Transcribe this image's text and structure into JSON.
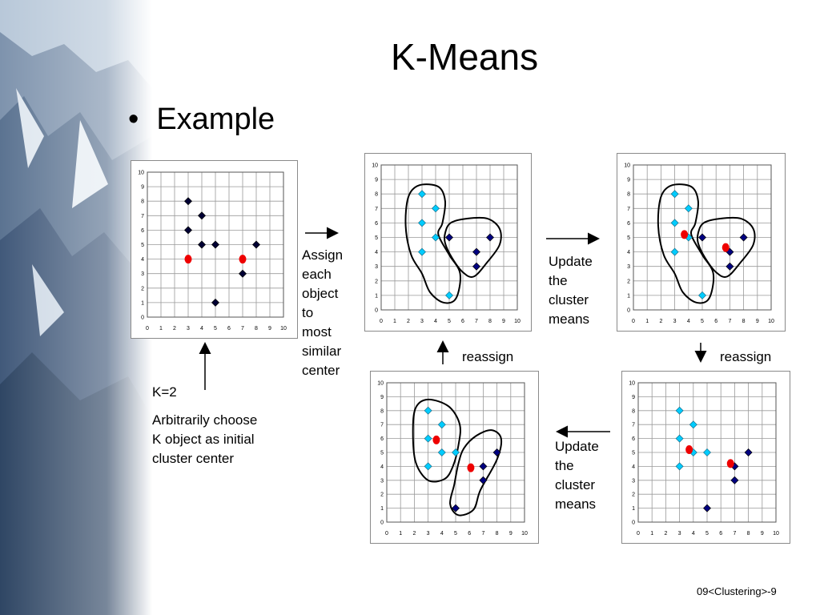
{
  "slide": {
    "title": "K-Means",
    "bullet": "Example",
    "footer": "09<Clustering>-9"
  },
  "captions": {
    "k": "K=2",
    "initial": [
      "Arbitrarily choose",
      "K object as initial",
      "cluster center"
    ],
    "assign": [
      "Assign",
      "each",
      "object",
      "to",
      "most",
      "similar",
      "center"
    ],
    "update_top": [
      "Update",
      "the",
      "cluster",
      "means"
    ],
    "reassign_left": "reassign",
    "reassign_right": "reassign",
    "update_bottom": [
      "Update",
      "the",
      "cluster",
      "means"
    ]
  },
  "colors": {
    "point_dark": "#000033",
    "cluster_a": "#00ccff",
    "cluster_b": "#000080",
    "center": "#ee0000",
    "grid": "#9a9a9a"
  },
  "chart_data": [
    {
      "type": "scatter",
      "step": "initial centers",
      "xlim": [
        0,
        10
      ],
      "ylim": [
        0,
        10
      ],
      "xticks": [
        "0",
        "1",
        "2",
        "3",
        "4",
        "5",
        "6",
        "7",
        "8",
        "9",
        "10"
      ],
      "yticks": [
        "0",
        "1",
        "2",
        "3",
        "4",
        "5",
        "6",
        "7",
        "8",
        "9",
        "10"
      ],
      "points": [
        {
          "x": 3,
          "y": 8,
          "c": "dark"
        },
        {
          "x": 4,
          "y": 7,
          "c": "dark"
        },
        {
          "x": 3,
          "y": 6,
          "c": "dark"
        },
        {
          "x": 4,
          "y": 5,
          "c": "dark"
        },
        {
          "x": 5,
          "y": 5,
          "c": "dark"
        },
        {
          "x": 8,
          "y": 5,
          "c": "dark"
        },
        {
          "x": 7,
          "y": 3,
          "c": "dark"
        },
        {
          "x": 5,
          "y": 1,
          "c": "dark"
        }
      ],
      "centers": [
        {
          "x": 3,
          "y": 4
        },
        {
          "x": 7,
          "y": 4
        }
      ],
      "outlines": []
    },
    {
      "type": "scatter",
      "step": "assign",
      "xlim": [
        0,
        10
      ],
      "ylim": [
        0,
        10
      ],
      "xticks": [
        "0",
        "1",
        "2",
        "3",
        "4",
        "5",
        "6",
        "7",
        "8",
        "9",
        "10"
      ],
      "yticks": [
        "0",
        "1",
        "2",
        "3",
        "4",
        "5",
        "6",
        "7",
        "8",
        "9",
        "10"
      ],
      "points": [
        {
          "x": 3,
          "y": 8,
          "c": "a"
        },
        {
          "x": 4,
          "y": 7,
          "c": "a"
        },
        {
          "x": 3,
          "y": 6,
          "c": "a"
        },
        {
          "x": 4,
          "y": 5,
          "c": "a"
        },
        {
          "x": 3,
          "y": 4,
          "c": "a"
        },
        {
          "x": 5,
          "y": 1,
          "c": "a"
        },
        {
          "x": 5,
          "y": 5,
          "c": "b"
        },
        {
          "x": 8,
          "y": 5,
          "c": "b"
        },
        {
          "x": 7,
          "y": 4,
          "c": "b"
        },
        {
          "x": 7,
          "y": 3,
          "c": "b"
        }
      ],
      "centers": [],
      "outlines": [
        [
          [
            2.0,
            7.8
          ],
          [
            2.8,
            8.6
          ],
          [
            4.2,
            8.5
          ],
          [
            4.7,
            7.5
          ],
          [
            4.5,
            6.0
          ],
          [
            4.2,
            5.2
          ],
          [
            5.0,
            3.8
          ],
          [
            5.8,
            2.5
          ],
          [
            5.5,
            0.8
          ],
          [
            4.6,
            0.5
          ],
          [
            3.6,
            1.2
          ],
          [
            3.0,
            2.5
          ],
          [
            2.2,
            3.8
          ],
          [
            1.8,
            5.8
          ]
        ],
        [
          [
            4.7,
            5.3
          ],
          [
            5.1,
            6.0
          ],
          [
            6.3,
            6.3
          ],
          [
            7.8,
            6.3
          ],
          [
            8.7,
            5.6
          ],
          [
            8.7,
            4.5
          ],
          [
            7.8,
            3.3
          ],
          [
            6.8,
            2.3
          ],
          [
            6.0,
            2.6
          ],
          [
            5.2,
            3.6
          ],
          [
            4.7,
            4.6
          ]
        ]
      ]
    },
    {
      "type": "scatter",
      "step": "update means",
      "xlim": [
        0,
        10
      ],
      "ylim": [
        0,
        10
      ],
      "xticks": [
        "0",
        "1",
        "2",
        "3",
        "4",
        "5",
        "6",
        "7",
        "8",
        "9",
        "10"
      ],
      "yticks": [
        "0",
        "1",
        "2",
        "3",
        "4",
        "5",
        "6",
        "7",
        "8",
        "9",
        "10"
      ],
      "points": [
        {
          "x": 3,
          "y": 8,
          "c": "a"
        },
        {
          "x": 4,
          "y": 7,
          "c": "a"
        },
        {
          "x": 3,
          "y": 6,
          "c": "a"
        },
        {
          "x": 4,
          "y": 5,
          "c": "a"
        },
        {
          "x": 3,
          "y": 4,
          "c": "a"
        },
        {
          "x": 5,
          "y": 1,
          "c": "a"
        },
        {
          "x": 5,
          "y": 5,
          "c": "b"
        },
        {
          "x": 8,
          "y": 5,
          "c": "b"
        },
        {
          "x": 7,
          "y": 4,
          "c": "b"
        },
        {
          "x": 7,
          "y": 3,
          "c": "b"
        }
      ],
      "centers": [
        {
          "x": 3.7,
          "y": 5.2
        },
        {
          "x": 6.7,
          "y": 4.3
        }
      ],
      "outlines": [
        [
          [
            2.0,
            7.8
          ],
          [
            2.8,
            8.6
          ],
          [
            4.2,
            8.5
          ],
          [
            4.7,
            7.5
          ],
          [
            4.5,
            6.0
          ],
          [
            4.2,
            5.2
          ],
          [
            5.0,
            3.8
          ],
          [
            5.8,
            2.5
          ],
          [
            5.5,
            0.8
          ],
          [
            4.6,
            0.5
          ],
          [
            3.6,
            1.2
          ],
          [
            3.0,
            2.5
          ],
          [
            2.2,
            3.8
          ],
          [
            1.8,
            5.8
          ]
        ],
        [
          [
            4.7,
            5.3
          ],
          [
            5.1,
            6.0
          ],
          [
            6.3,
            6.3
          ],
          [
            7.8,
            6.3
          ],
          [
            8.7,
            5.6
          ],
          [
            8.7,
            4.5
          ],
          [
            7.8,
            3.3
          ],
          [
            6.8,
            2.3
          ],
          [
            6.0,
            2.6
          ],
          [
            5.2,
            3.6
          ],
          [
            4.7,
            4.6
          ]
        ]
      ]
    },
    {
      "type": "scatter",
      "step": "reassign",
      "xlim": [
        0,
        10
      ],
      "ylim": [
        0,
        10
      ],
      "xticks": [
        "0",
        "1",
        "2",
        "3",
        "4",
        "5",
        "6",
        "7",
        "8",
        "9",
        "10"
      ],
      "yticks": [
        "0",
        "1",
        "2",
        "3",
        "4",
        "5",
        "6",
        "7",
        "8",
        "9",
        "10"
      ],
      "points": [
        {
          "x": 3,
          "y": 8,
          "c": "a"
        },
        {
          "x": 4,
          "y": 7,
          "c": "a"
        },
        {
          "x": 3,
          "y": 6,
          "c": "a"
        },
        {
          "x": 4,
          "y": 5,
          "c": "a"
        },
        {
          "x": 3,
          "y": 4,
          "c": "a"
        },
        {
          "x": 5,
          "y": 5,
          "c": "a"
        },
        {
          "x": 8,
          "y": 5,
          "c": "b"
        },
        {
          "x": 7,
          "y": 4,
          "c": "b"
        },
        {
          "x": 7,
          "y": 3,
          "c": "b"
        },
        {
          "x": 5,
          "y": 1,
          "c": "b"
        }
      ],
      "centers": [
        {
          "x": 3.7,
          "y": 5.2
        },
        {
          "x": 6.7,
          "y": 4.2
        }
      ],
      "outlines": []
    },
    {
      "type": "scatter",
      "step": "update means again",
      "xlim": [
        0,
        10
      ],
      "ylim": [
        0,
        10
      ],
      "xticks": [
        "0",
        "1",
        "2",
        "3",
        "4",
        "5",
        "6",
        "7",
        "8",
        "9",
        "10"
      ],
      "yticks": [
        "0",
        "1",
        "2",
        "3",
        "4",
        "5",
        "6",
        "7",
        "8",
        "9",
        "10"
      ],
      "points": [
        {
          "x": 3,
          "y": 8,
          "c": "a"
        },
        {
          "x": 4,
          "y": 7,
          "c": "a"
        },
        {
          "x": 3,
          "y": 6,
          "c": "a"
        },
        {
          "x": 4,
          "y": 5,
          "c": "a"
        },
        {
          "x": 3,
          "y": 4,
          "c": "a"
        },
        {
          "x": 5,
          "y": 5,
          "c": "a"
        },
        {
          "x": 8,
          "y": 5,
          "c": "b"
        },
        {
          "x": 7,
          "y": 4,
          "c": "b"
        },
        {
          "x": 7,
          "y": 3,
          "c": "b"
        },
        {
          "x": 5,
          "y": 1,
          "c": "b"
        }
      ],
      "centers": [
        {
          "x": 3.6,
          "y": 5.9
        },
        {
          "x": 6.1,
          "y": 3.9
        }
      ],
      "outlines": [
        [
          [
            1.9,
            6.5
          ],
          [
            2.1,
            8.2
          ],
          [
            3.0,
            8.8
          ],
          [
            4.5,
            8.3
          ],
          [
            5.3,
            7.0
          ],
          [
            5.2,
            5.5
          ],
          [
            4.8,
            4.0
          ],
          [
            4.2,
            3.1
          ],
          [
            3.0,
            3.0
          ],
          [
            2.1,
            4.3
          ]
        ],
        [
          [
            5.2,
            4.2
          ],
          [
            5.6,
            5.3
          ],
          [
            6.5,
            6.2
          ],
          [
            7.6,
            6.6
          ],
          [
            8.3,
            6.0
          ],
          [
            8.0,
            4.5
          ],
          [
            6.8,
            2.3
          ],
          [
            6.3,
            0.9
          ],
          [
            5.2,
            0.5
          ],
          [
            4.6,
            1.3
          ],
          [
            4.9,
            2.7
          ]
        ]
      ]
    }
  ]
}
